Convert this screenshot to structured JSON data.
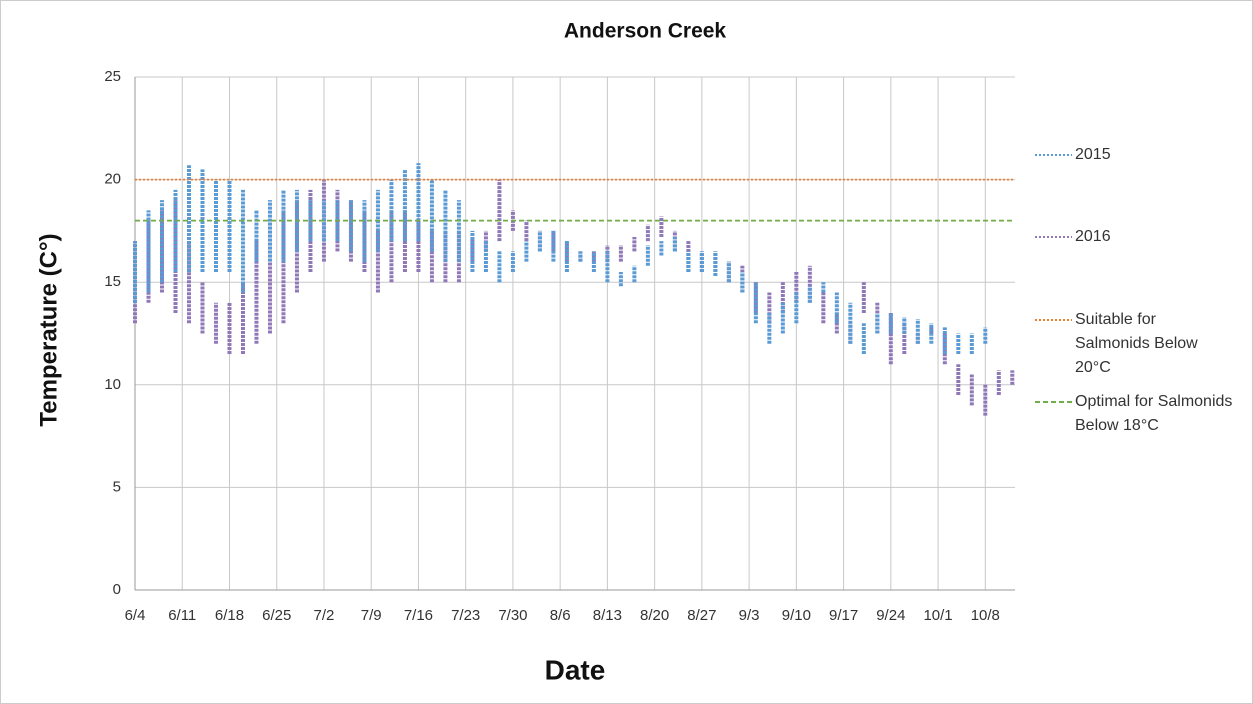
{
  "chart_data": {
    "type": "range_bar",
    "title": "Anderson Creek",
    "x_label": "Date",
    "y_label": "Temperature (C°)",
    "x": [
      0,
      2,
      4,
      6,
      8,
      10,
      12,
      14,
      16,
      18,
      20,
      22,
      24,
      26,
      28,
      30,
      32,
      34,
      36,
      38,
      40,
      42,
      44,
      46,
      48,
      50,
      52,
      54,
      56,
      58,
      60,
      62,
      64,
      66,
      68,
      70,
      72,
      74,
      76,
      78,
      80,
      82,
      84,
      86,
      88,
      90,
      92,
      94,
      96,
      98,
      100,
      102,
      104,
      106,
      108,
      110,
      112,
      114,
      116,
      118,
      120,
      122,
      124,
      126,
      128,
      130
    ],
    "xlim": [
      0,
      130.4
    ],
    "xticks": [
      {
        "value": 0,
        "label": "6/4"
      },
      {
        "value": 7,
        "label": "6/11"
      },
      {
        "value": 14,
        "label": "6/18"
      },
      {
        "value": 21,
        "label": "6/25"
      },
      {
        "value": 28,
        "label": "7/2"
      },
      {
        "value": 35,
        "label": "7/9"
      },
      {
        "value": 42,
        "label": "7/16"
      },
      {
        "value": 49,
        "label": "7/23"
      },
      {
        "value": 56,
        "label": "7/30"
      },
      {
        "value": 63,
        "label": "8/6"
      },
      {
        "value": 70,
        "label": "8/13"
      },
      {
        "value": 77,
        "label": "8/20"
      },
      {
        "value": 84,
        "label": "8/27"
      },
      {
        "value": 91,
        "label": "9/3"
      },
      {
        "value": 98,
        "label": "9/10"
      },
      {
        "value": 105,
        "label": "9/17"
      },
      {
        "value": 112,
        "label": "9/24"
      },
      {
        "value": 119,
        "label": "10/1"
      },
      {
        "value": 126,
        "label": "10/8"
      }
    ],
    "ylim": [
      0,
      25
    ],
    "yticks": [
      0,
      5,
      10,
      15,
      20,
      25
    ],
    "grid": true,
    "legend": "right",
    "series": [
      {
        "name": "2016",
        "color": "#8f78b8",
        "low": [
          13,
          14,
          14.5,
          13.5,
          13,
          12.5,
          12,
          11.5,
          11.5,
          12,
          12.5,
          13,
          14.5,
          15.5,
          16,
          16.5,
          16,
          15.5,
          14.5,
          15,
          15.5,
          15.5,
          15,
          15,
          15,
          16,
          16.5,
          17,
          17.5,
          17,
          16.5,
          16.5,
          16,
          16,
          16,
          16,
          16,
          16.5,
          17,
          17.2,
          16.5,
          15.5,
          15.5,
          15.5,
          15,
          14.5,
          13.5,
          13,
          13.5,
          14,
          14,
          13,
          12.5,
          12,
          13.5,
          12.5,
          11,
          11.5,
          12,
          12.5,
          11,
          9.5,
          9,
          8.5,
          9.5,
          10
        ],
        "high": [
          17,
          18,
          18.5,
          19,
          17,
          15,
          14,
          14,
          15,
          17,
          18,
          18.5,
          19,
          19.5,
          20,
          19.5,
          19,
          18.5,
          17.5,
          18.5,
          18.5,
          18,
          17.5,
          17.5,
          17.5,
          17.2,
          17.5,
          20,
          18.5,
          18,
          17.5,
          17.5,
          17,
          16.5,
          16.5,
          16.8,
          16.8,
          17.2,
          17.8,
          18.2,
          17.5,
          17,
          16.5,
          16.5,
          16,
          15.8,
          15,
          14.5,
          15,
          15.5,
          15.8,
          14.5,
          13.5,
          13,
          15,
          14,
          13.5,
          13,
          12.5,
          12.8,
          12.5,
          11,
          10.5,
          10,
          10.7,
          10.7
        ]
      },
      {
        "name": "2015",
        "color": "#5b9bd5",
        "low": [
          14,
          14.5,
          15,
          15.5,
          15.5,
          15.5,
          15.5,
          15.5,
          14.5,
          16,
          16,
          16,
          16.5,
          17,
          17,
          17,
          16.5,
          16,
          16.5,
          17,
          17,
          17,
          16.5,
          16,
          16,
          15.5,
          15.5,
          15,
          15.5,
          16,
          16.5,
          16,
          15.5,
          16,
          15.5,
          15,
          14.8,
          15,
          15.8,
          16.3,
          16.5,
          15.5,
          15.5,
          15.3,
          15,
          14.5,
          13,
          12,
          12.5,
          13,
          14,
          14.5,
          13,
          12,
          11.5,
          12.5,
          12.5,
          12.5,
          12,
          12,
          11.5,
          11.5,
          11.5,
          12,
          null,
          null
        ],
        "high": [
          17,
          18.5,
          19,
          19.5,
          20.7,
          20.5,
          20,
          20,
          19.5,
          18.5,
          19,
          19.5,
          19.5,
          19,
          19,
          19,
          19,
          19,
          19.5,
          20,
          20.5,
          20.8,
          20,
          19.5,
          19,
          17.5,
          17,
          16.5,
          16.5,
          17,
          17.5,
          17.5,
          17,
          16.5,
          16.5,
          16.5,
          15.5,
          15.8,
          16.8,
          17,
          17.2,
          16.5,
          16.5,
          16.5,
          16,
          15.5,
          15,
          13.5,
          14,
          14.5,
          14.8,
          15,
          14.5,
          14,
          13,
          13.5,
          13.5,
          13.3,
          13.2,
          13,
          12.8,
          12.5,
          12.5,
          12.8,
          null,
          null
        ]
      }
    ],
    "reference_lines": [
      {
        "name": "Suitable for Salmonids Below 20°C",
        "value": 20,
        "color": "#ed7d31",
        "style": "dotted"
      },
      {
        "name": "Optimal for Salmonids Below 18°C",
        "value": 18,
        "color": "#70ad47",
        "style": "dashed"
      }
    ]
  }
}
